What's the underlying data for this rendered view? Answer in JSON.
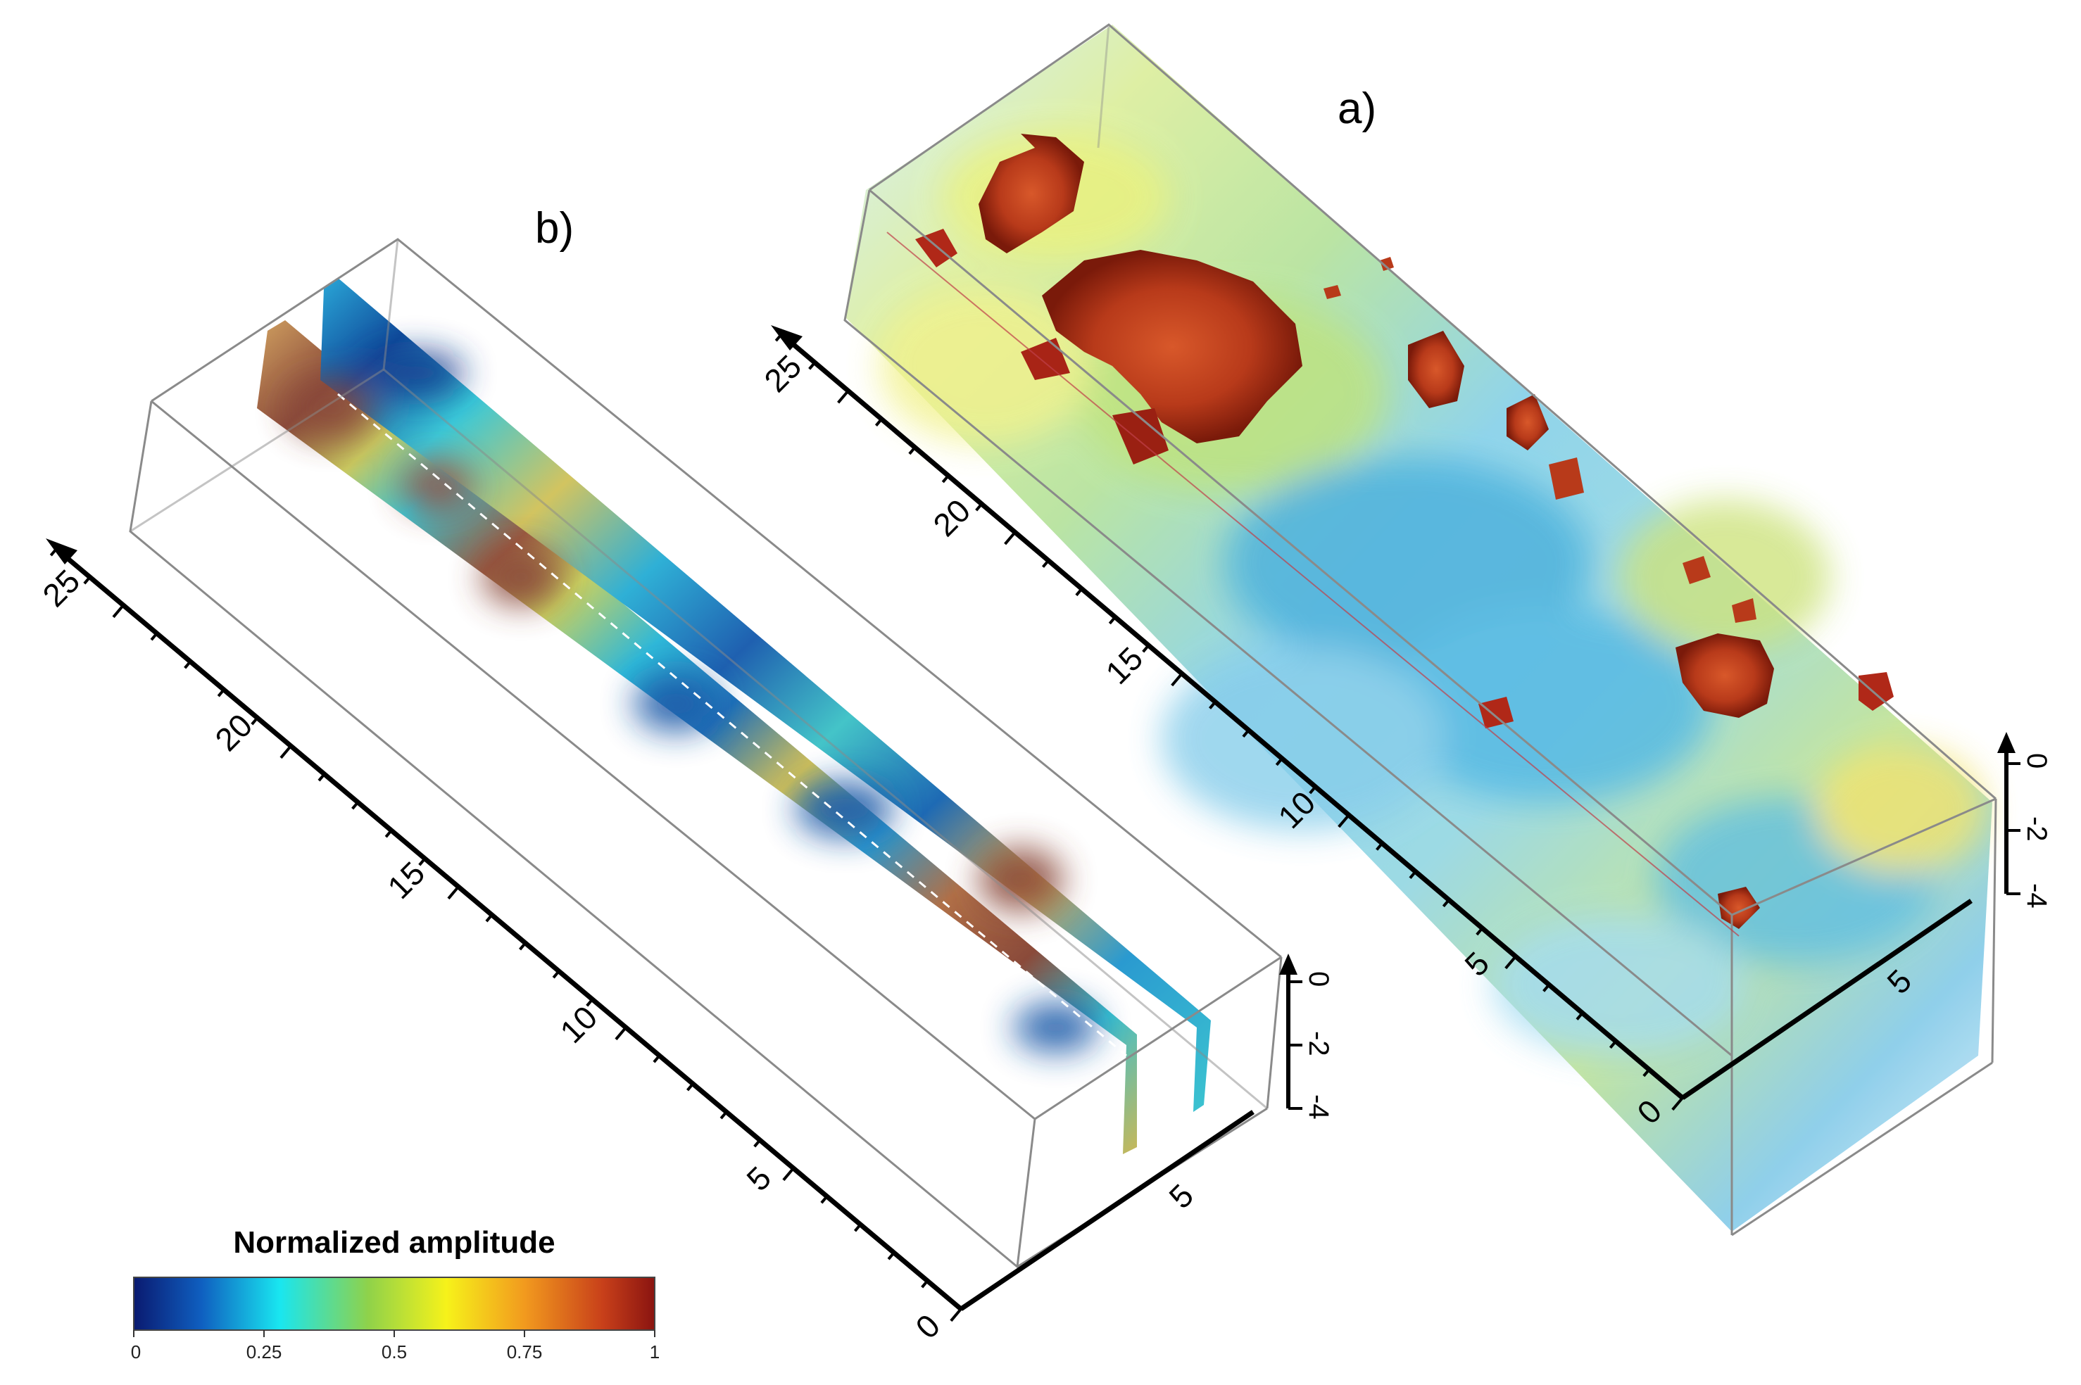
{
  "panels": {
    "a": {
      "label": "a)"
    },
    "b": {
      "label": "b)"
    }
  },
  "axes": {
    "length_ticks": [
      "0",
      "5",
      "10",
      "15",
      "20",
      "25"
    ],
    "width_ticks": [
      "5"
    ],
    "depth_ticks": [
      "0",
      "-2",
      "-4"
    ]
  },
  "colorbar": {
    "title": "Normalized amplitude",
    "ticks": [
      "0",
      "0.25",
      "0.5",
      "0.75",
      "1"
    ],
    "colors": [
      "#0a1a70",
      "#0f5fc0",
      "#19e6f0",
      "#8fd24a",
      "#f6f21a",
      "#f29a1e",
      "#c8401a",
      "#8a1410"
    ]
  }
}
